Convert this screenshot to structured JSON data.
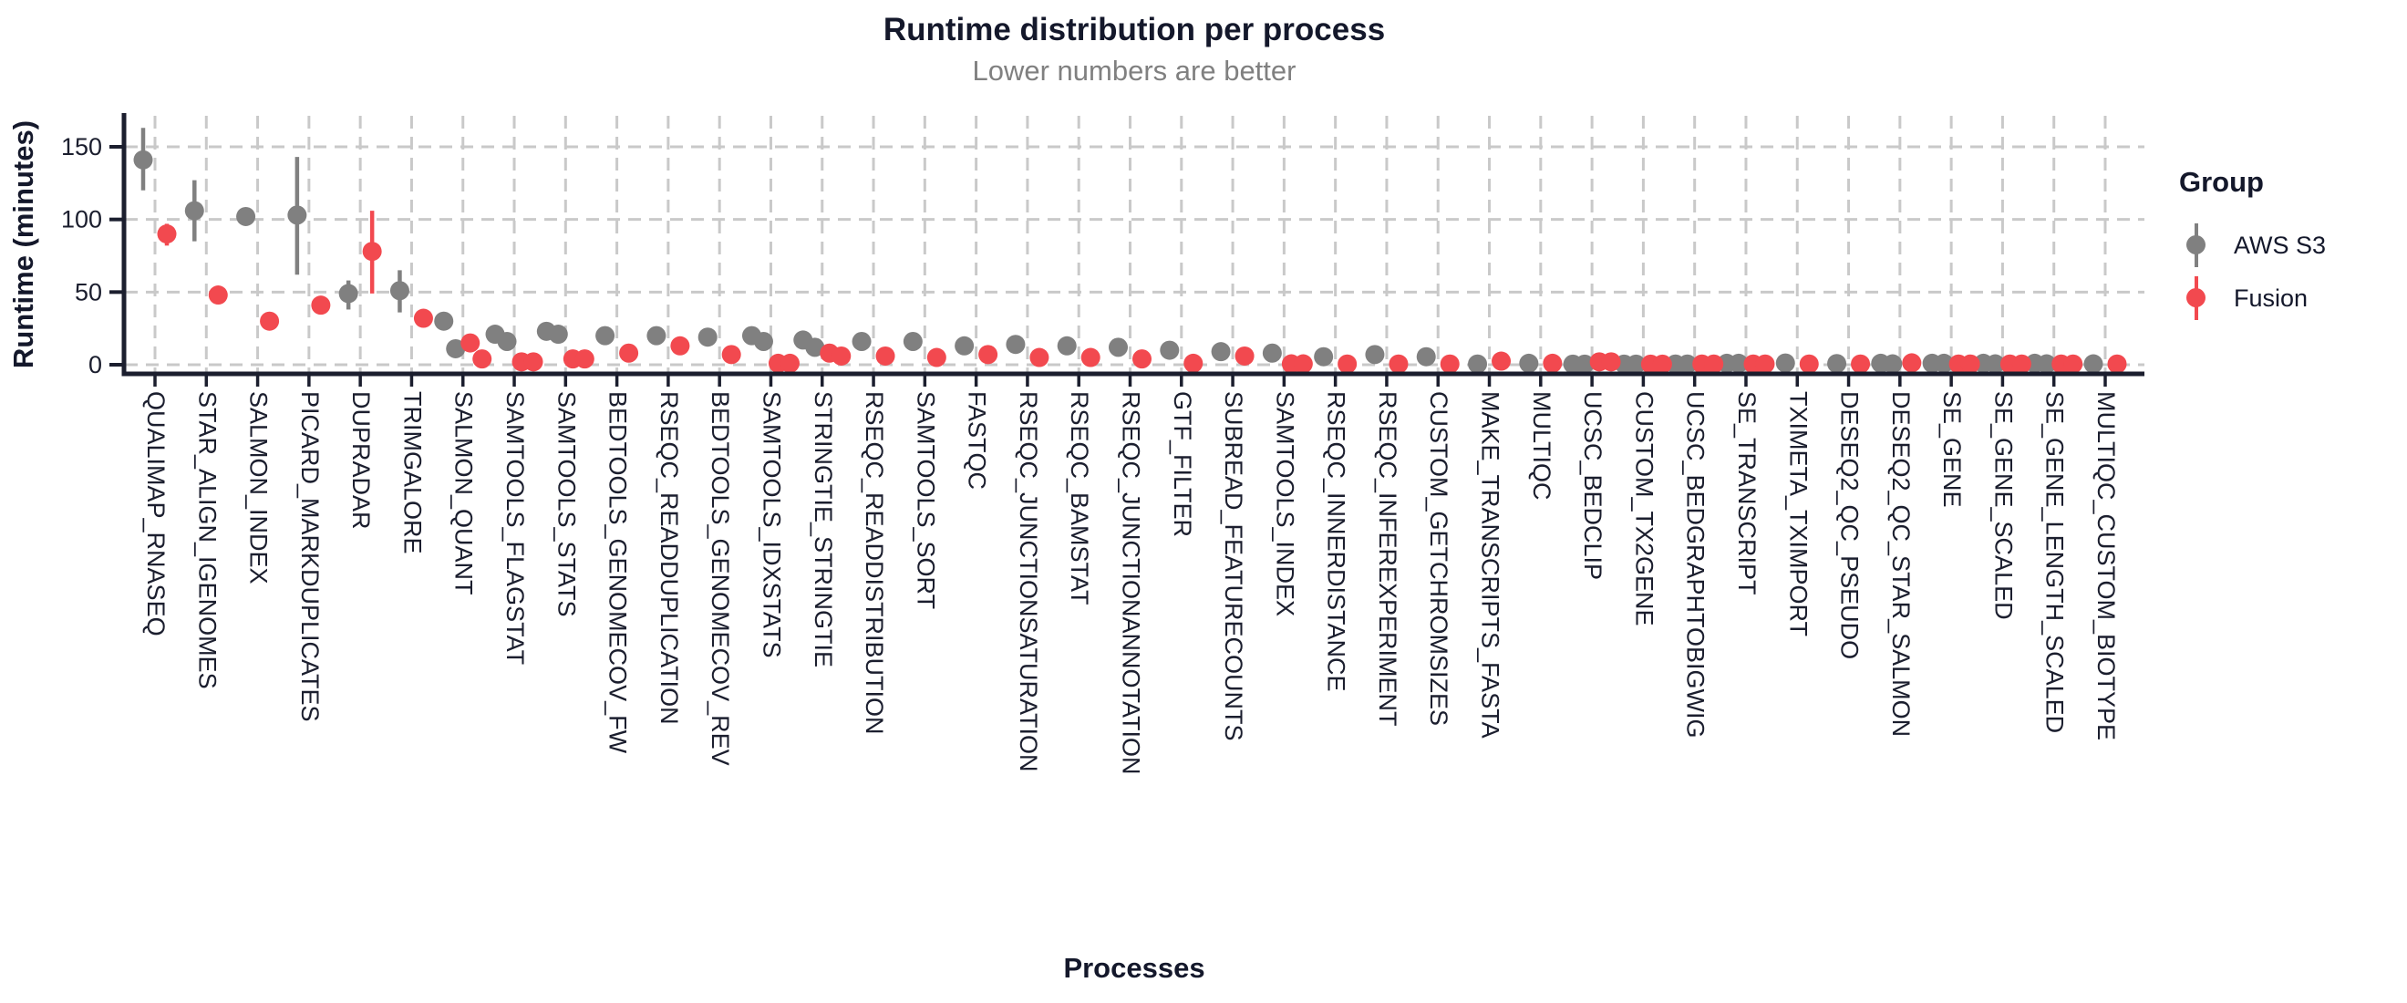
{
  "title": "Runtime distribution per process",
  "subtitle": "Lower numbers are better",
  "x_axis_title": "Processes",
  "y_axis_title": "Runtime (minutes)",
  "legend": {
    "title": "Group",
    "entries": [
      {
        "label": "AWS S3",
        "color": "#808080"
      },
      {
        "label": "Fusion",
        "color": "#F2494F"
      }
    ]
  },
  "colors": {
    "title": "#14182B",
    "subtitle": "#808080",
    "axis": "#1B1E2E",
    "text": "#1B1E2E",
    "grid": "#C9C9C9",
    "background": "#FFFFFF"
  },
  "chart_data": {
    "type": "scatter",
    "style": "pointrange-dodged",
    "title": "Runtime distribution per process",
    "subtitle": "Lower numbers are better",
    "xlabel": "Processes",
    "ylabel": "Runtime (minutes)",
    "ylim": [
      0,
      170
    ],
    "yticks": [
      0,
      50,
      100,
      150
    ],
    "grid": "dashed",
    "legend_position": "right",
    "categories": [
      "QUALIMAP_RNASEQ",
      "STAR_ALIGN_IGENOMES",
      "SALMON_INDEX",
      "PICARD_MARKDUPLICATES",
      "DUPRADAR",
      "TRIMGALORE",
      "SALMON_QUANT",
      "SAMTOOLS_FLAGSTAT",
      "SAMTOOLS_STATS",
      "BEDTOOLS_GENOMECOV_FW",
      "RSEQC_READDUPLICATION",
      "BEDTOOLS_GENOMECOV_REV",
      "SAMTOOLS_IDXSTATS",
      "STRINGTIE_STRINGTIE",
      "RSEQC_READDISTRIBUTION",
      "SAMTOOLS_SORT",
      "FASTQC",
      "RSEQC_JUNCTIONSATURATION",
      "RSEQC_BAMSTAT",
      "RSEQC_JUNCTIONANNOTATION",
      "GTF_FILTER",
      "SUBREAD_FEATURECOUNTS",
      "SAMTOOLS_INDEX",
      "RSEQC_INNERDISTANCE",
      "RSEQC_INFEREXPERIMENT",
      "CUSTOM_GETCHROMSIZES",
      "MAKE_TRANSCRIPTS_FASTA",
      "MULTIQC",
      "UCSC_BEDCLIP",
      "CUSTOM_TX2GENE",
      "UCSC_BEDGRAPHTOBIGWIG",
      "SE_TRANSCRIPT",
      "TXIMETA_TXIMPORT",
      "DESEQ2_QC_PSEUDO",
      "DESEQ2_QC_STAR_SALMON",
      "SE_GENE",
      "SE_GENE_SCALED",
      "SE_GENE_LENGTH_SCALED",
      "MULTIQC_CUSTOM_BIOTYPE"
    ],
    "series": [
      {
        "name": "AWS S3",
        "color": "#808080",
        "points": [
          [
            [
              141,
              120,
              163
            ]
          ],
          [
            [
              106,
              85,
              127
            ]
          ],
          [
            [
              102
            ]
          ],
          [
            [
              103,
              62,
              143
            ]
          ],
          [
            [
              49,
              38,
              58
            ]
          ],
          [
            [
              51,
              36,
              65
            ]
          ],
          [
            [
              30
            ],
            [
              11
            ]
          ],
          [
            [
              21
            ],
            [
              16
            ]
          ],
          [
            [
              23,
              20,
              26
            ],
            [
              21
            ]
          ],
          [
            [
              20
            ]
          ],
          [
            [
              20
            ]
          ],
          [
            [
              19
            ]
          ],
          [
            [
              20
            ],
            [
              16
            ]
          ],
          [
            [
              17
            ],
            [
              12
            ]
          ],
          [
            [
              16
            ]
          ],
          [
            [
              16,
              11,
              21
            ]
          ],
          [
            [
              13
            ]
          ],
          [
            [
              14
            ]
          ],
          [
            [
              13
            ]
          ],
          [
            [
              12
            ]
          ],
          [
            [
              10
            ]
          ],
          [
            [
              9
            ]
          ],
          [
            [
              8
            ]
          ],
          [
            [
              5.5
            ]
          ],
          [
            [
              7
            ]
          ],
          [
            [
              5.5
            ]
          ],
          [
            [
              0.5
            ]
          ],
          [
            [
              1
            ]
          ],
          [
            [
              0.4
            ],
            [
              0.4
            ]
          ],
          [
            [
              0.4
            ],
            [
              0.4
            ]
          ],
          [
            [
              0.5
            ],
            [
              0.5
            ]
          ],
          [
            [
              1
            ],
            [
              1
            ]
          ],
          [
            [
              1.2
            ]
          ],
          [
            [
              0.8
            ]
          ],
          [
            [
              1
            ],
            [
              0.6
            ]
          ],
          [
            [
              1
            ],
            [
              1
            ]
          ],
          [
            [
              1
            ],
            [
              0.6
            ]
          ],
          [
            [
              1
            ],
            [
              0.6
            ]
          ],
          [
            [
              0.6
            ]
          ]
        ]
      },
      {
        "name": "Fusion",
        "color": "#F2494F",
        "points": [
          [
            [
              90,
              82,
              97
            ]
          ],
          [
            [
              48,
              45,
              52
            ]
          ],
          [
            [
              30
            ]
          ],
          [
            [
              41
            ]
          ],
          [
            [
              78,
              49,
              106
            ]
          ],
          [
            [
              32
            ]
          ],
          [
            [
              15
            ],
            [
              4
            ]
          ],
          [
            [
              2
            ],
            [
              2
            ]
          ],
          [
            [
              4
            ],
            [
              4
            ]
          ],
          [
            [
              8
            ]
          ],
          [
            [
              13
            ]
          ],
          [
            [
              7
            ]
          ],
          [
            [
              1
            ],
            [
              1
            ]
          ],
          [
            [
              8
            ],
            [
              6
            ]
          ],
          [
            [
              6
            ]
          ],
          [
            [
              5
            ]
          ],
          [
            [
              7
            ]
          ],
          [
            [
              5
            ]
          ],
          [
            [
              5
            ]
          ],
          [
            [
              4
            ]
          ],
          [
            [
              1
            ]
          ],
          [
            [
              6
            ]
          ],
          [
            [
              0.6
            ],
            [
              0.6
            ]
          ],
          [
            [
              0.5
            ]
          ],
          [
            [
              0.5
            ]
          ],
          [
            [
              0.5
            ]
          ],
          [
            [
              2.5
            ]
          ],
          [
            [
              1
            ]
          ],
          [
            [
              2
            ],
            [
              2
            ]
          ],
          [
            [
              0.4
            ],
            [
              0.4
            ]
          ],
          [
            [
              0.5
            ],
            [
              0.5
            ]
          ],
          [
            [
              0.5
            ],
            [
              0.5
            ]
          ],
          [
            [
              0.5
            ]
          ],
          [
            [
              0.5
            ]
          ],
          [
            [
              1.3
            ]
          ],
          [
            [
              0.5
            ],
            [
              0.5
            ]
          ],
          [
            [
              0.5
            ],
            [
              0.5
            ]
          ],
          [
            [
              0.5
            ],
            [
              0.5
            ]
          ],
          [
            [
              0.5
            ]
          ]
        ]
      }
    ]
  }
}
